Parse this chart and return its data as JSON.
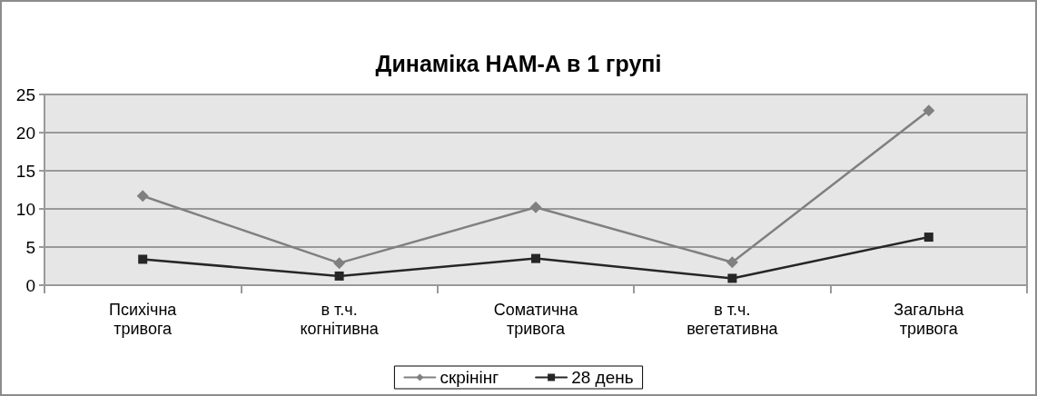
{
  "chart_data": {
    "type": "line",
    "title": "Динаміка HAM-A в 1 групі",
    "categories": [
      "Психічна тривога",
      "в т.ч. когнітивна",
      "Соматична тривога",
      "в т.ч. вегетативна",
      "Загальна тривога"
    ],
    "series": [
      {
        "name": "скрінінг",
        "color": "#808080",
        "marker": "diamond",
        "values": [
          11.7,
          2.9,
          10.2,
          3.0,
          22.9
        ]
      },
      {
        "name": "28 день",
        "color": "#262626",
        "marker": "square",
        "values": [
          3.4,
          1.2,
          3.5,
          0.9,
          6.3
        ]
      }
    ],
    "ylim": [
      0,
      25
    ],
    "yticks": [
      0,
      5,
      10,
      15,
      20,
      25
    ],
    "grid": "y",
    "legend": "bottom",
    "line_style": "solid"
  }
}
